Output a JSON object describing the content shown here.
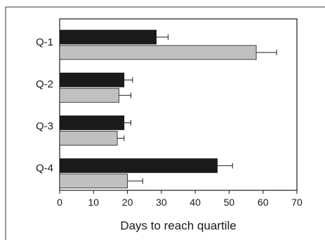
{
  "chart_data": {
    "type": "bar",
    "orientation": "horizontal",
    "categories": [
      "Q-1",
      "Q-2",
      "Q-3",
      "Q-4"
    ],
    "series": [
      {
        "values": [
          28.5,
          19,
          19,
          46.5
        ],
        "errors": [
          3.5,
          2.5,
          2,
          4.5
        ],
        "color": "#1a1a1a"
      },
      {
        "values": [
          58,
          17.5,
          17,
          20
        ],
        "errors": [
          6,
          3.5,
          2,
          4.5
        ],
        "color": "#c0c0c0"
      }
    ],
    "xlabel": "Days to reach quartile",
    "ylabel": "",
    "xlim": [
      0,
      70
    ],
    "xticks": [
      "0",
      "10",
      "20",
      "30",
      "40",
      "50",
      "60",
      "70"
    ],
    "grid": false,
    "legend": "none"
  }
}
